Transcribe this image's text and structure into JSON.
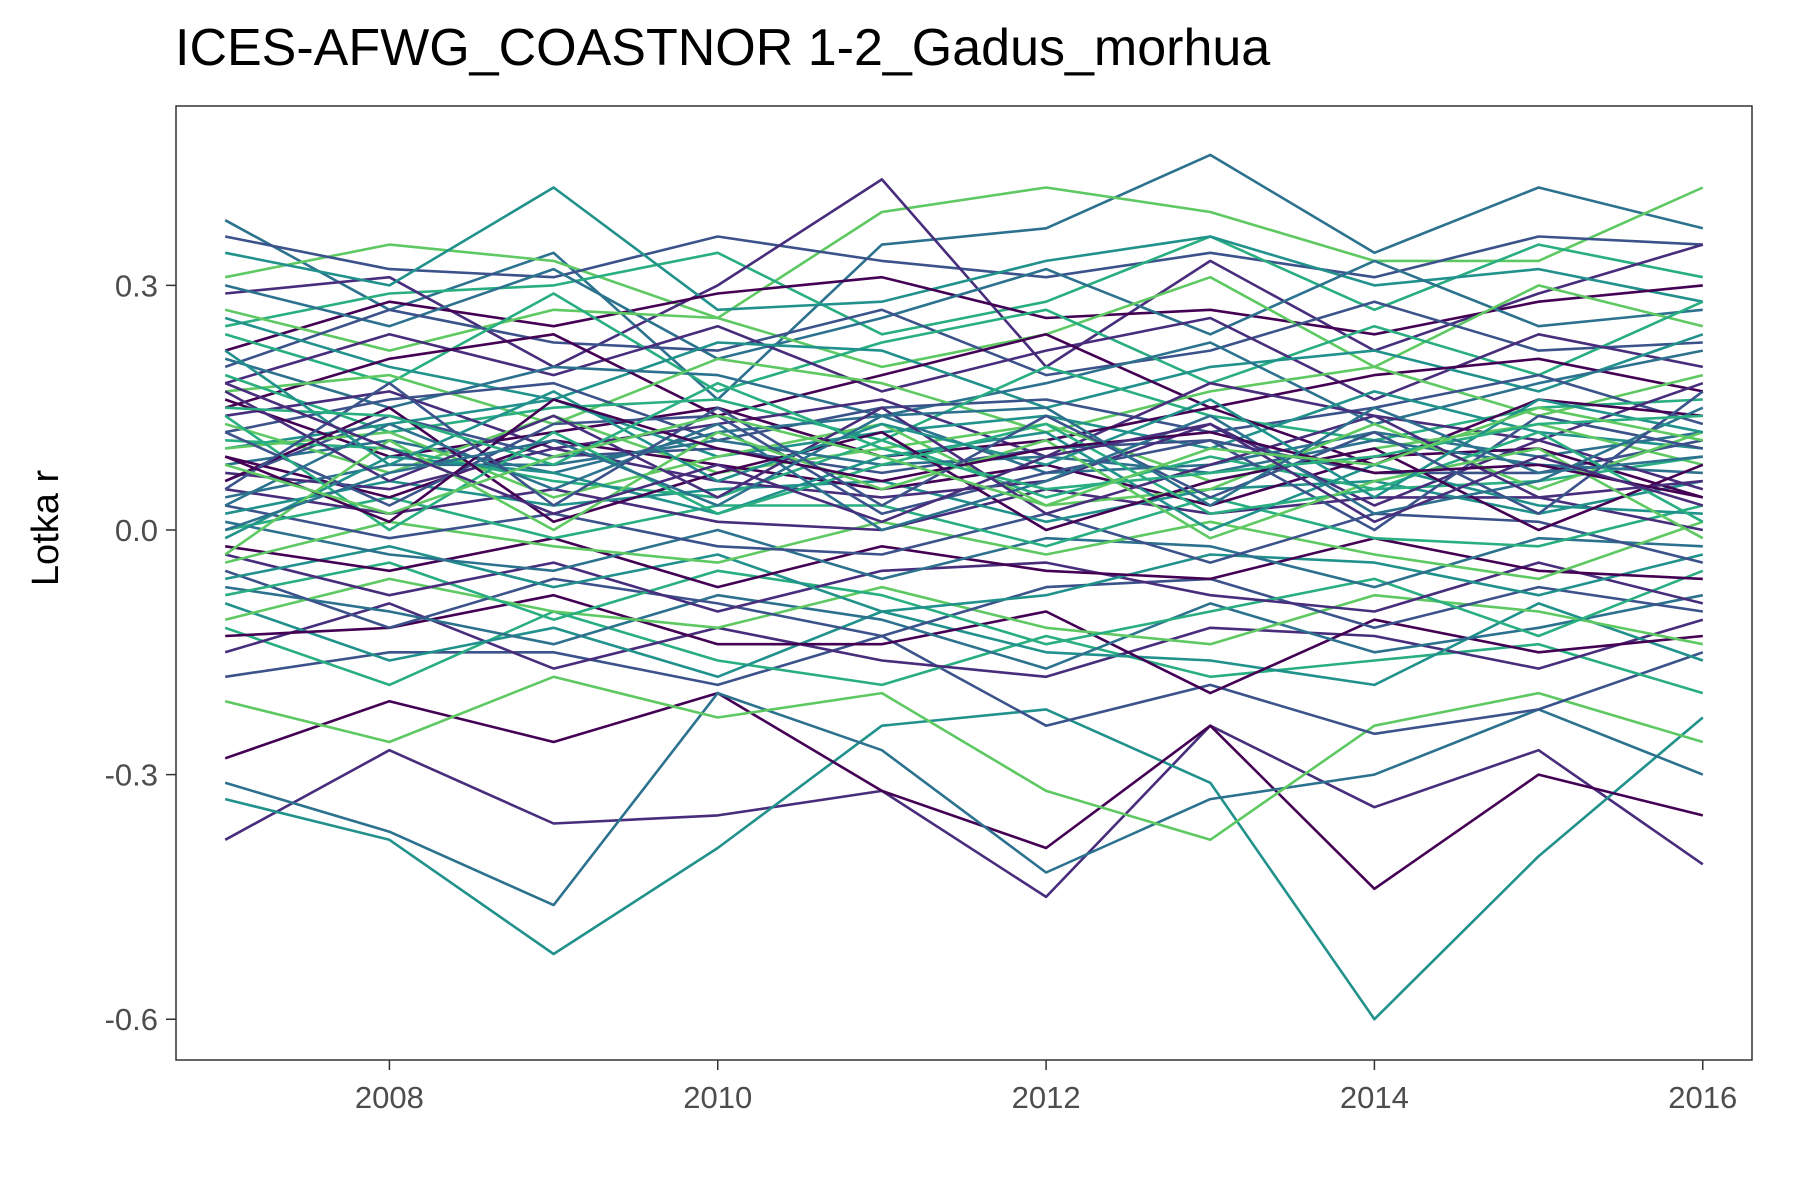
{
  "chart_data": {
    "type": "line",
    "title": "ICES-AFWG_COASTNOR 1-2_Gadus_morhua",
    "xlabel": "",
    "ylabel": "Lotka r",
    "x": [
      2007,
      2008,
      2009,
      2010,
      2011,
      2012,
      2013,
      2014,
      2015,
      2016
    ],
    "xlim": [
      2006.7,
      2016.3
    ],
    "ylim": [
      -0.65,
      0.52
    ],
    "x_ticks": [
      2008,
      2010,
      2012,
      2014,
      2016
    ],
    "x_tick_labels": [
      "2008",
      "2010",
      "2012",
      "2014",
      "2016"
    ],
    "y_ticks": [
      -0.6,
      -0.3,
      0.0,
      0.3
    ],
    "y_tick_labels": [
      "-0.6",
      "-0.3",
      "0.0",
      "0.3"
    ],
    "grid": false,
    "legend": "none",
    "palette": [
      "#440154",
      "#472d7b",
      "#3b528b",
      "#2c728e",
      "#21918c",
      "#28ae80",
      "#5ec962"
    ],
    "series": [
      {
        "values": [
          0.38,
          0.27,
          0.34,
          0.16,
          0.35,
          0.37,
          0.46,
          0.34,
          0.42,
          0.37
        ]
      },
      {
        "values": [
          -0.38,
          -0.27,
          -0.36,
          -0.35,
          -0.32,
          -0.45,
          -0.24,
          -0.34,
          -0.27,
          -0.41
        ]
      },
      {
        "values": [
          0.31,
          0.35,
          0.33,
          0.26,
          0.39,
          0.42,
          0.39,
          0.33,
          0.33,
          0.42
        ]
      },
      {
        "values": [
          -0.33,
          -0.38,
          -0.52,
          -0.39,
          -0.24,
          -0.22,
          -0.31,
          -0.6,
          -0.4,
          -0.23
        ]
      },
      {
        "values": [
          0.36,
          0.32,
          0.31,
          0.36,
          0.33,
          0.31,
          0.34,
          0.31,
          0.36,
          0.35
        ]
      },
      {
        "values": [
          -0.28,
          -0.21,
          -0.26,
          -0.2,
          -0.32,
          -0.39,
          -0.24,
          -0.44,
          -0.3,
          -0.35
        ]
      },
      {
        "values": [
          0.25,
          0.29,
          0.3,
          0.34,
          0.24,
          0.28,
          0.36,
          0.27,
          0.35,
          0.31
        ]
      },
      {
        "values": [
          -0.31,
          -0.37,
          -0.46,
          -0.2,
          -0.27,
          -0.42,
          -0.33,
          -0.3,
          -0.22,
          -0.3
        ]
      },
      {
        "values": [
          0.29,
          0.31,
          0.2,
          0.3,
          0.43,
          0.2,
          0.33,
          0.22,
          0.29,
          0.35
        ]
      },
      {
        "values": [
          -0.21,
          -0.26,
          -0.18,
          -0.23,
          -0.2,
          -0.32,
          -0.38,
          -0.24,
          -0.2,
          -0.26
        ]
      },
      {
        "values": [
          0.34,
          0.3,
          0.42,
          0.27,
          0.28,
          0.33,
          0.36,
          0.3,
          0.32,
          0.28
        ]
      },
      {
        "values": [
          -0.18,
          -0.15,
          -0.15,
          -0.19,
          -0.13,
          -0.24,
          -0.19,
          -0.25,
          -0.22,
          -0.15
        ]
      },
      {
        "values": [
          0.22,
          0.28,
          0.25,
          0.29,
          0.31,
          0.26,
          0.27,
          0.24,
          0.28,
          0.3
        ]
      },
      {
        "values": [
          -0.12,
          -0.19,
          -0.1,
          -0.16,
          -0.19,
          -0.13,
          -0.18,
          -0.16,
          -0.14,
          -0.2
        ]
      },
      {
        "values": [
          0.3,
          0.25,
          0.32,
          0.21,
          0.26,
          0.32,
          0.24,
          0.33,
          0.25,
          0.27
        ]
      },
      {
        "values": [
          -0.15,
          -0.09,
          -0.17,
          -0.12,
          -0.16,
          -0.18,
          -0.12,
          -0.13,
          -0.17,
          -0.11
        ]
      },
      {
        "values": [
          0.27,
          0.22,
          0.27,
          0.26,
          0.2,
          0.24,
          0.31,
          0.2,
          0.3,
          0.25
        ]
      },
      {
        "values": [
          -0.09,
          -0.16,
          -0.12,
          -0.18,
          -0.1,
          -0.15,
          -0.16,
          -0.19,
          -0.09,
          -0.16
        ]
      },
      {
        "values": [
          0.2,
          0.27,
          0.23,
          0.22,
          0.27,
          0.19,
          0.22,
          0.28,
          0.22,
          0.23
        ]
      },
      {
        "values": [
          -0.13,
          -0.12,
          -0.08,
          -0.14,
          -0.14,
          -0.1,
          -0.2,
          -0.11,
          -0.15,
          -0.13
        ]
      },
      {
        "values": [
          0.24,
          0.18,
          0.29,
          0.17,
          0.23,
          0.27,
          0.18,
          0.25,
          0.19,
          0.28
        ]
      },
      {
        "values": [
          -0.07,
          -0.1,
          -0.14,
          -0.08,
          -0.11,
          -0.17,
          -0.09,
          -0.15,
          -0.12,
          -0.08
        ]
      },
      {
        "values": [
          0.18,
          0.24,
          0.19,
          0.25,
          0.17,
          0.22,
          0.26,
          0.16,
          0.24,
          0.2
        ]
      },
      {
        "values": [
          -0.11,
          -0.06,
          -0.1,
          -0.12,
          -0.07,
          -0.12,
          -0.14,
          -0.08,
          -0.1,
          -0.14
        ]
      },
      {
        "values": [
          0.26,
          0.2,
          0.16,
          0.23,
          0.22,
          0.15,
          0.2,
          0.22,
          0.17,
          0.24
        ]
      },
      {
        "values": [
          -0.05,
          -0.12,
          -0.06,
          -0.09,
          -0.13,
          -0.07,
          -0.06,
          -0.12,
          -0.07,
          -0.1
        ]
      },
      {
        "values": [
          0.15,
          0.21,
          0.24,
          0.14,
          0.19,
          0.24,
          0.15,
          0.19,
          0.21,
          0.17
        ]
      },
      {
        "values": [
          -0.08,
          -0.04,
          -0.11,
          -0.05,
          -0.08,
          -0.14,
          -0.1,
          -0.06,
          -0.13,
          -0.05
        ]
      },
      {
        "values": [
          0.21,
          0.15,
          0.2,
          0.19,
          0.14,
          0.18,
          0.23,
          0.13,
          0.18,
          0.22
        ]
      },
      {
        "values": [
          -0.03,
          -0.08,
          -0.04,
          -0.1,
          -0.05,
          -0.04,
          -0.08,
          -0.1,
          -0.04,
          -0.09
        ]
      },
      {
        "values": [
          0.17,
          0.19,
          0.13,
          0.21,
          0.18,
          0.12,
          0.17,
          0.2,
          0.14,
          0.19
        ]
      },
      {
        "values": [
          -0.06,
          -0.02,
          -0.07,
          -0.03,
          -0.1,
          -0.08,
          -0.03,
          -0.04,
          -0.08,
          -0.03
        ]
      },
      {
        "values": [
          0.12,
          0.16,
          0.18,
          0.11,
          0.15,
          0.16,
          0.12,
          0.15,
          0.19,
          0.13
        ]
      },
      {
        "values": [
          -0.02,
          -0.05,
          -0.01,
          -0.07,
          -0.02,
          -0.05,
          -0.06,
          -0.01,
          -0.05,
          -0.06
        ]
      },
      {
        "values": [
          0.19,
          0.12,
          0.15,
          0.16,
          0.11,
          0.2,
          0.14,
          0.11,
          0.15,
          0.16
        ]
      },
      {
        "values": [
          0.01,
          -0.03,
          -0.05,
          0.0,
          -0.06,
          -0.01,
          -0.02,
          -0.07,
          -0.01,
          -0.02
        ]
      },
      {
        "values": [
          0.14,
          0.17,
          0.1,
          0.13,
          0.16,
          0.09,
          0.18,
          0.14,
          0.11,
          0.18
        ]
      },
      {
        "values": [
          -0.04,
          0.01,
          -0.02,
          -0.04,
          0.01,
          -0.03,
          0.01,
          -0.03,
          -0.06,
          0.01
        ]
      },
      {
        "values": [
          0.1,
          0.13,
          0.16,
          0.09,
          0.12,
          0.14,
          0.1,
          0.17,
          0.12,
          0.1
        ]
      },
      {
        "values": [
          0.03,
          -0.01,
          0.02,
          -0.02,
          -0.03,
          0.02,
          -0.04,
          0.02,
          0.01,
          -0.04
        ]
      },
      {
        "values": [
          0.16,
          0.09,
          0.12,
          0.15,
          0.09,
          0.11,
          0.15,
          0.08,
          0.16,
          0.14
        ]
      },
      {
        "values": [
          0.0,
          0.04,
          -0.01,
          0.03,
          0.03,
          -0.02,
          0.04,
          -0.01,
          -0.02,
          0.03
        ]
      },
      {
        "values": [
          0.08,
          0.11,
          0.07,
          0.12,
          0.14,
          0.07,
          0.08,
          0.12,
          0.09,
          0.12
        ]
      },
      {
        "values": [
          0.05,
          0.02,
          0.05,
          0.01,
          0.0,
          0.05,
          0.02,
          0.04,
          0.04,
          0.0
        ]
      },
      {
        "values": [
          0.13,
          0.07,
          0.14,
          0.07,
          0.1,
          0.13,
          0.06,
          0.1,
          0.13,
          0.08
        ]
      },
      {
        "values": [
          0.02,
          0.06,
          0.03,
          0.05,
          0.06,
          0.01,
          0.05,
          0.06,
          0.02,
          0.06
        ]
      },
      {
        "values": [
          0.06,
          0.14,
          0.09,
          0.1,
          0.07,
          0.1,
          0.11,
          0.07,
          0.07,
          0.11
        ]
      },
      {
        "values": [
          0.09,
          0.04,
          0.11,
          0.08,
          0.05,
          0.08,
          0.03,
          0.09,
          0.1,
          0.04
        ]
      },
      {
        "values": [
          0.11,
          0.1,
          0.06,
          0.04,
          0.11,
          0.04,
          0.09,
          0.05,
          0.06,
          0.09
        ]
      },
      {
        "values": [
          0.04,
          0.08,
          0.08,
          0.11,
          0.08,
          0.09,
          0.07,
          0.11,
          0.08,
          0.07
        ]
      },
      {
        "values": [
          0.07,
          0.05,
          0.1,
          0.06,
          0.04,
          0.06,
          0.13,
          0.03,
          0.11,
          0.05
        ]
      },
      {
        "values": [
          0.1,
          0.12,
          0.04,
          0.09,
          0.13,
          0.03,
          0.05,
          0.13,
          0.05,
          0.12
        ]
      },
      {
        "values": [
          -0.01,
          0.09,
          0.07,
          0.02,
          0.09,
          0.12,
          0.0,
          0.08,
          0.03,
          0.02
        ]
      },
      {
        "values": [
          0.12,
          0.03,
          0.13,
          0.14,
          0.02,
          0.07,
          0.11,
          0.0,
          0.14,
          0.1
        ]
      },
      {
        "values": [
          0.06,
          0.15,
          0.01,
          0.07,
          0.12,
          0.0,
          0.06,
          0.1,
          0.0,
          0.08
        ]
      },
      {
        "values": [
          0.14,
          0.0,
          0.12,
          0.02,
          0.08,
          0.13,
          0.02,
          0.05,
          0.12,
          0.01
        ]
      },
      {
        "values": [
          0.03,
          0.13,
          0.05,
          0.13,
          0.0,
          0.06,
          0.14,
          0.02,
          0.06,
          0.15
        ]
      },
      {
        "values": [
          0.17,
          0.06,
          0.14,
          0.04,
          0.15,
          0.02,
          0.08,
          0.14,
          0.04,
          0.06
        ]
      },
      {
        "values": [
          -0.03,
          0.11,
          0.0,
          0.12,
          0.05,
          0.11,
          -0.01,
          0.06,
          0.1,
          -0.01
        ]
      },
      {
        "values": [
          0.22,
          0.08,
          0.17,
          0.06,
          0.13,
          0.08,
          0.16,
          0.04,
          0.16,
          0.12
        ]
      },
      {
        "values": [
          0.05,
          0.18,
          0.03,
          0.15,
          0.03,
          0.14,
          0.04,
          0.12,
          0.02,
          0.17
        ]
      },
      {
        "values": [
          0.09,
          0.01,
          0.16,
          0.1,
          0.06,
          0.1,
          0.12,
          0.07,
          0.08,
          0.04
        ]
      },
      {
        "values": [
          0.15,
          0.14,
          0.08,
          0.18,
          0.1,
          0.05,
          0.07,
          0.09,
          0.13,
          0.14
        ]
      },
      {
        "values": [
          0.0,
          0.07,
          0.11,
          0.03,
          0.14,
          0.15,
          0.03,
          0.15,
          0.07,
          0.09
        ]
      },
      {
        "values": [
          0.18,
          0.1,
          0.02,
          0.08,
          0.01,
          0.09,
          0.13,
          0.01,
          0.09,
          0.03
        ]
      },
      {
        "values": [
          0.08,
          0.02,
          0.09,
          0.14,
          0.09,
          0.03,
          0.1,
          0.08,
          0.15,
          0.11
        ]
      }
    ]
  }
}
